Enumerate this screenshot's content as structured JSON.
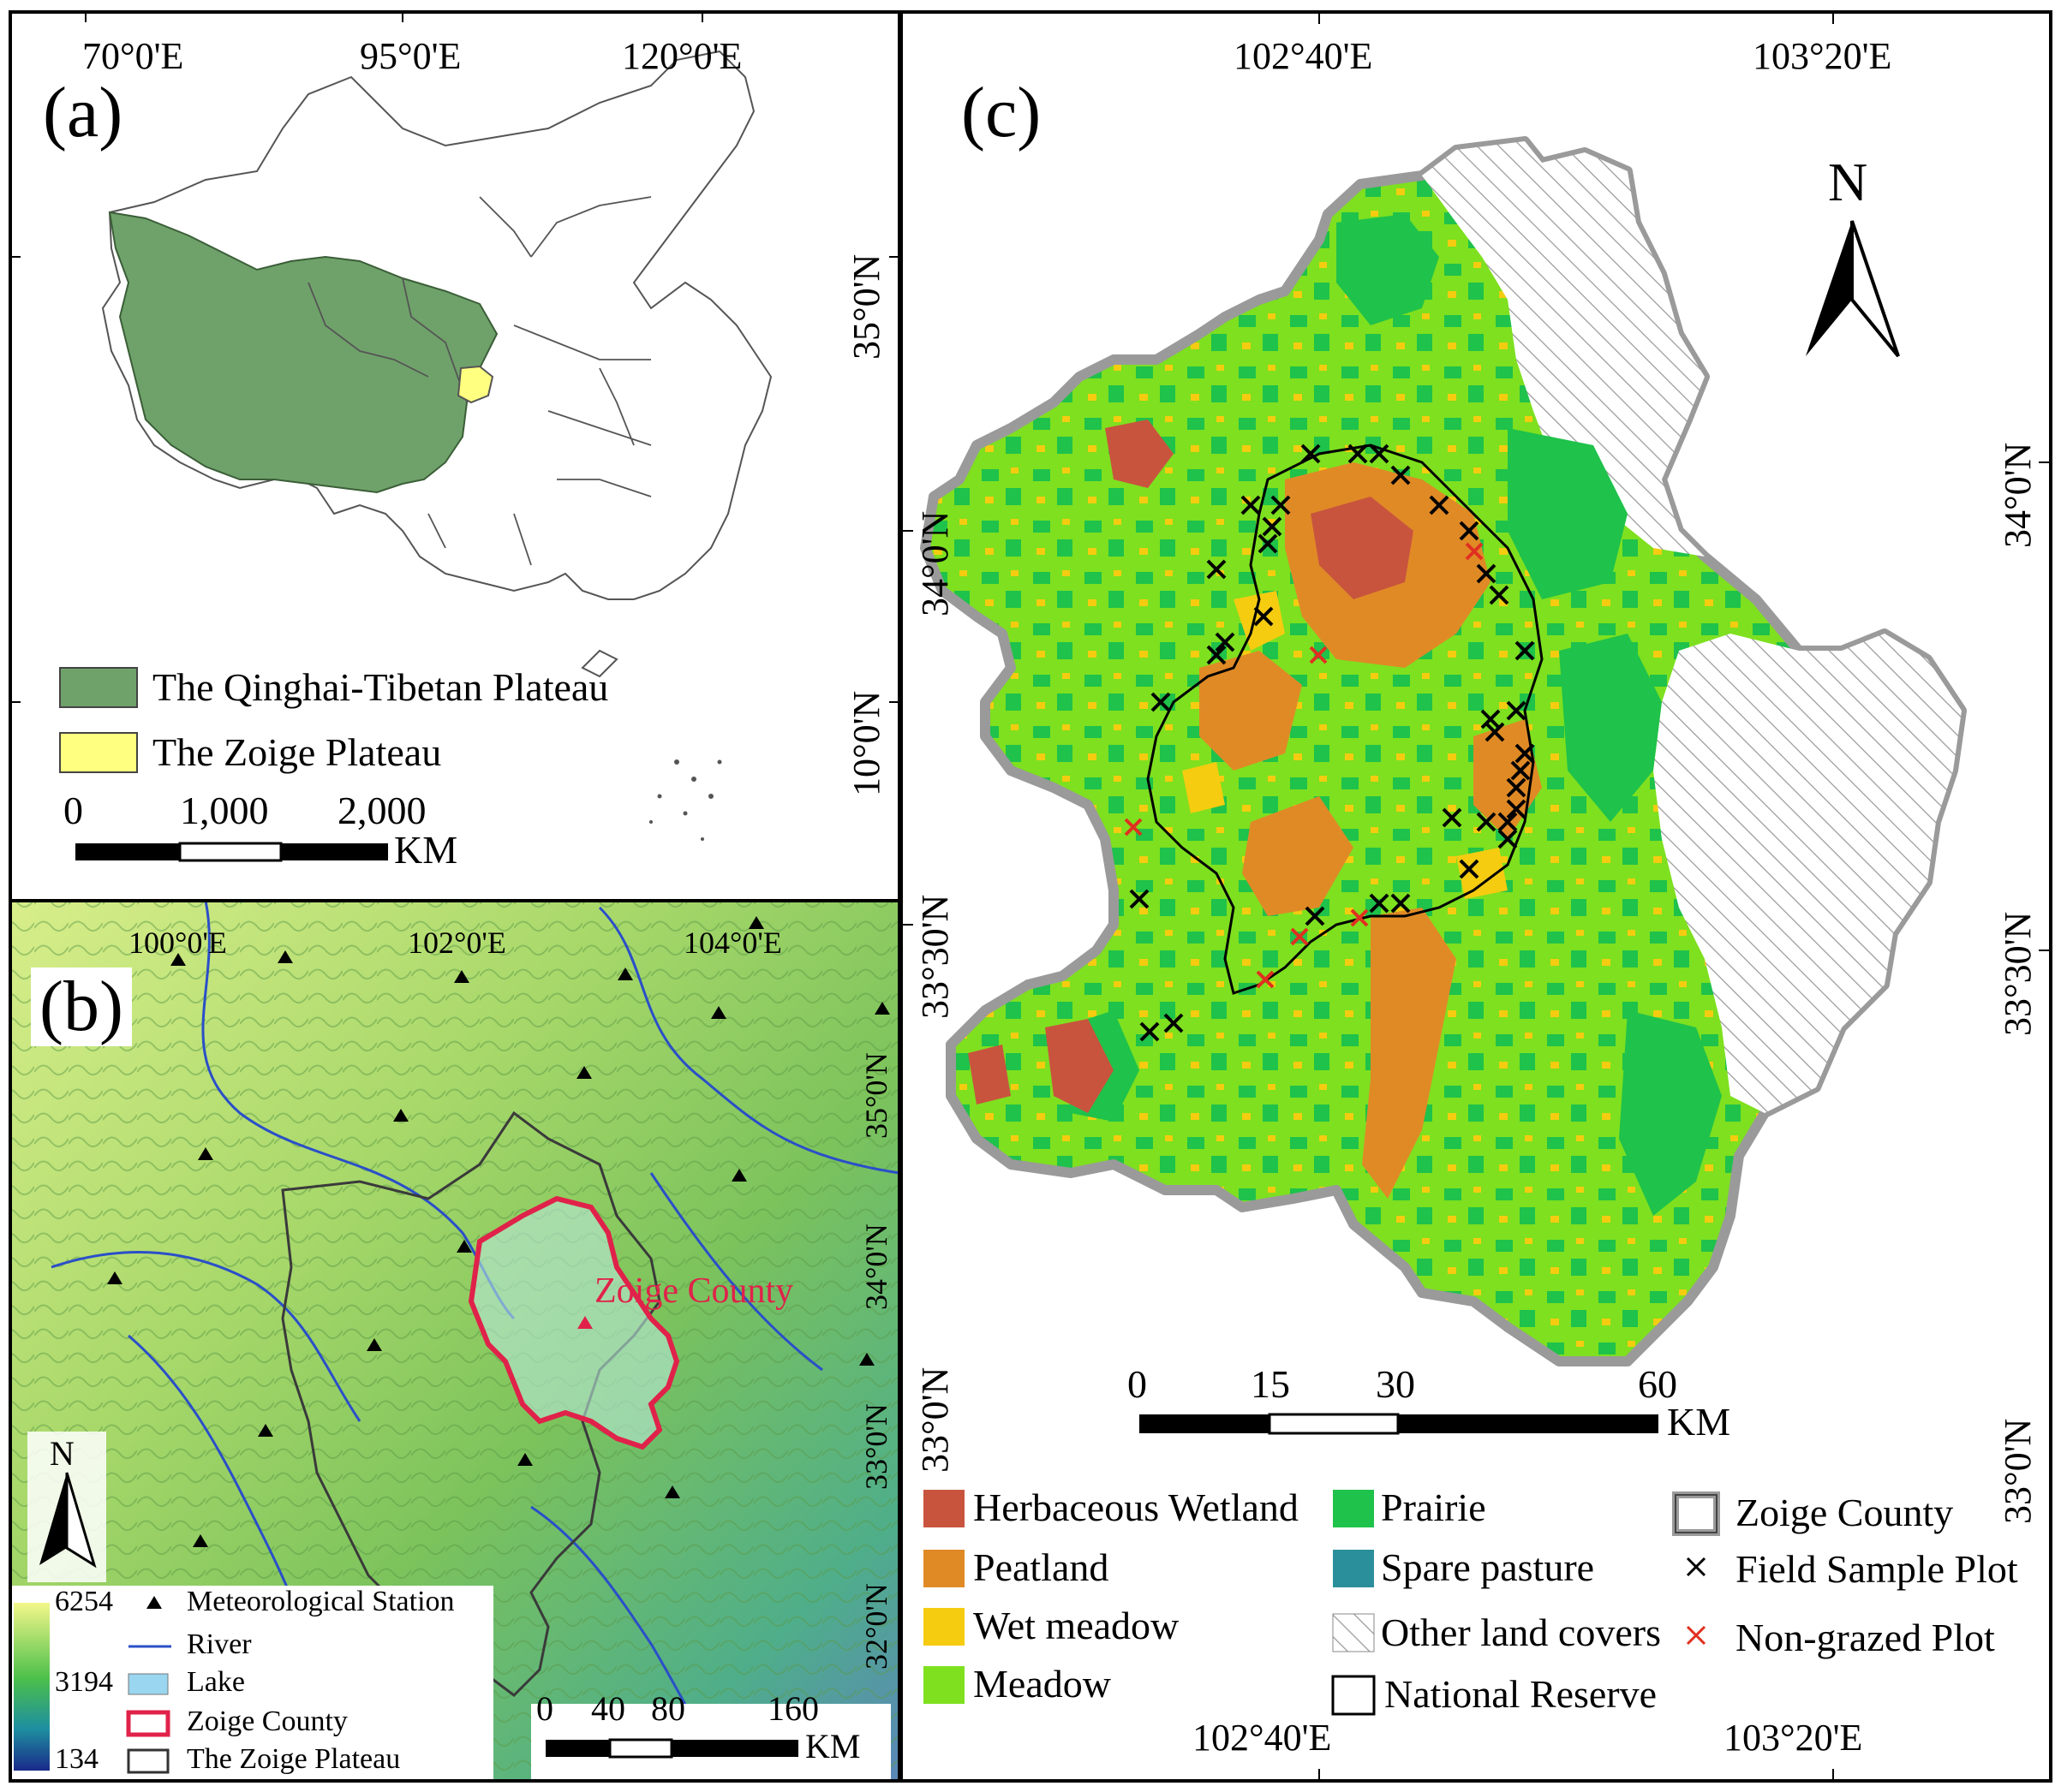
{
  "panel_a": {
    "letter": "(a)",
    "lon_ticks": [
      "70°0'E",
      "95°0'E",
      "120°0'E"
    ],
    "lat_ticks": [
      "35°0'N",
      "10°0'N"
    ],
    "legend": [
      {
        "label": "The Qinghai-Tibetan Plateau",
        "color": "#6fa26a"
      },
      {
        "label": "The Zoige Plateau",
        "color": "#ffff80"
      }
    ],
    "scalebar": {
      "ticks": [
        "0",
        "1,000",
        "2,000"
      ],
      "unit": "KM"
    }
  },
  "panel_b": {
    "letter": "(b)",
    "lon_ticks": [
      "100°0'E",
      "102°0'E",
      "104°0'E"
    ],
    "lat_ticks": [
      "35°0'N",
      "34°0'N",
      "33°0'N",
      "32°0'N"
    ],
    "county_label": "Zoige County",
    "north": "N",
    "elevation": {
      "max": "6254",
      "mid": "3194",
      "min": "134"
    },
    "legend": [
      {
        "symbol": "triangle",
        "label": "Meteorological Station"
      },
      {
        "symbol": "river",
        "label": "River"
      },
      {
        "symbol": "lake",
        "label": "Lake"
      },
      {
        "symbol": "county",
        "label": "Zoige County"
      },
      {
        "symbol": "plateau",
        "label": "The Zoige Plateau"
      }
    ],
    "scalebar": {
      "ticks": [
        "0",
        "40",
        "80",
        "160"
      ],
      "unit": "KM"
    }
  },
  "panel_c": {
    "letter": "(c)",
    "lon_ticks": [
      "102°40'E",
      "103°20'E"
    ],
    "lat_ticks": [
      "34°0'N",
      "33°30'N",
      "33°0'N"
    ],
    "north": "N",
    "scalebar": {
      "ticks": [
        "0",
        "15",
        "30",
        "60"
      ],
      "unit": "KM"
    },
    "legend": [
      {
        "label": "Herbaceous Wetland",
        "color": "#c8543e"
      },
      {
        "label": "Peatland",
        "color": "#e08a26"
      },
      {
        "label": "Wet meadow",
        "color": "#f5cc10"
      },
      {
        "label": "Meadow",
        "color": "#7ee01f"
      },
      {
        "label": "Prairie",
        "color": "#1fc24a"
      },
      {
        "label": "Spare pasture",
        "color": "#2a8f9a"
      },
      {
        "label": "Other land covers",
        "color": "hatch"
      },
      {
        "label": "National Reserve",
        "color": "none"
      },
      {
        "label": "Zoige County",
        "color": "#808080"
      },
      {
        "label": "Field Sample Plot",
        "color": "#000000"
      },
      {
        "label": "Non-grazed Plot",
        "color": "#e03020"
      }
    ]
  }
}
